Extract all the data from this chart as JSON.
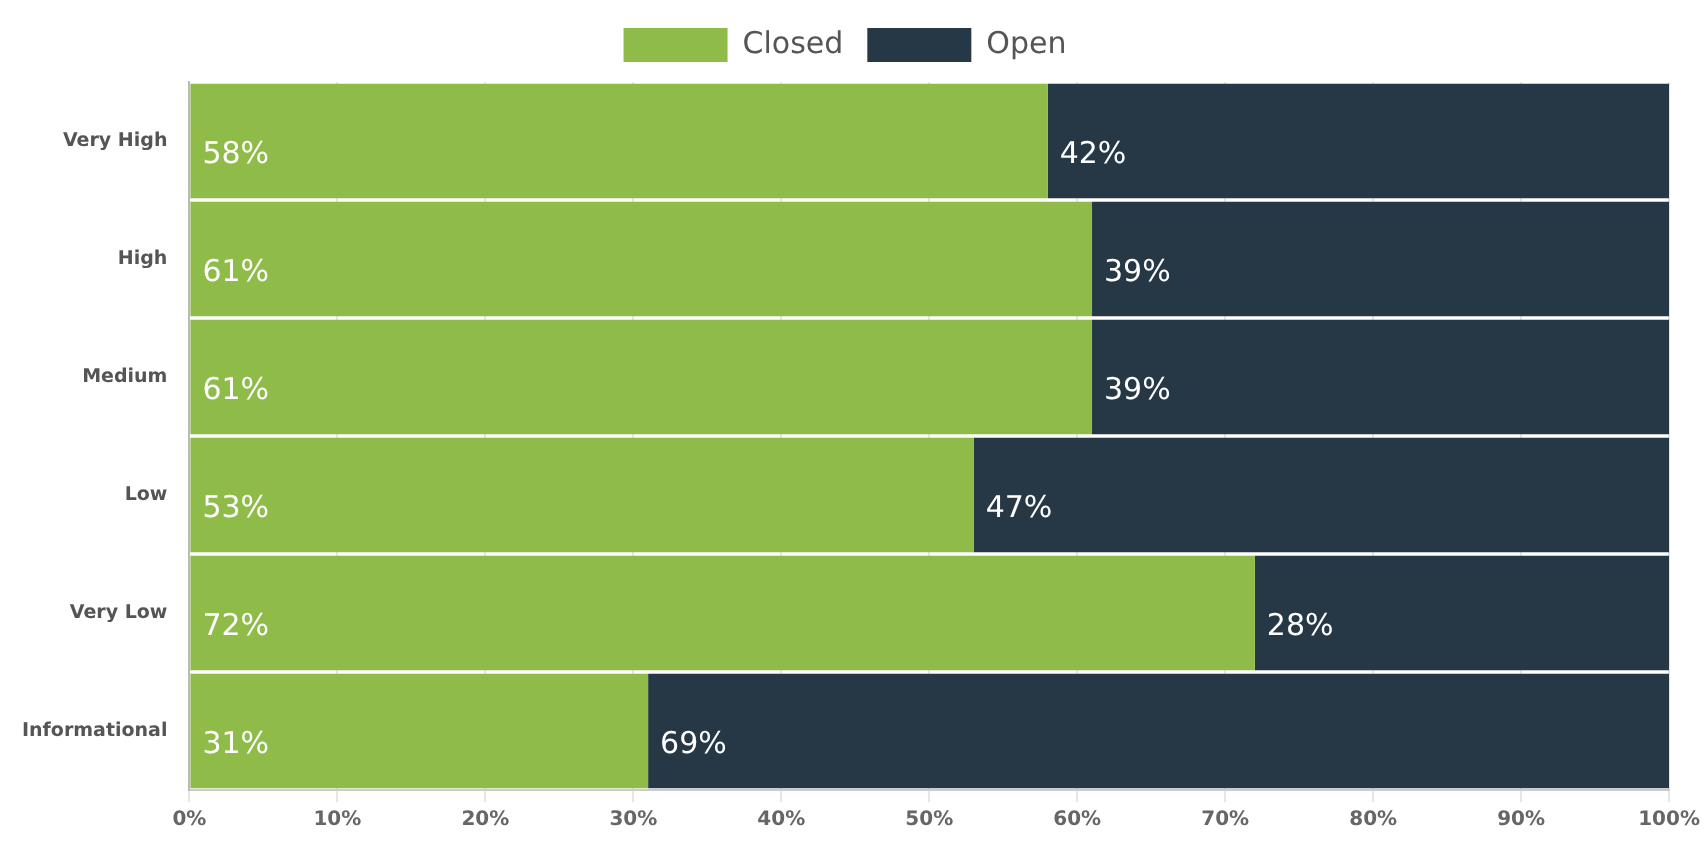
{
  "chart_data": {
    "type": "bar",
    "orientation": "horizontal",
    "stacked": true,
    "categories": [
      "Very High",
      "High",
      "Medium",
      "Low",
      "Very Low",
      "Informational"
    ],
    "series": [
      {
        "name": "Closed",
        "color": "#8fbb48",
        "values": [
          58,
          61,
          61,
          53,
          72,
          31
        ],
        "value_labels": [
          "58%",
          "61%",
          "61%",
          "53%",
          "72%",
          "31%"
        ]
      },
      {
        "name": "Open",
        "color": "#263746",
        "values": [
          42,
          39,
          39,
          47,
          28,
          69
        ],
        "value_labels": [
          "42%",
          "39%",
          "39%",
          "47%",
          "28%",
          "69%"
        ]
      }
    ],
    "xlim": [
      0,
      100
    ],
    "xticks": [
      {
        "value": 0,
        "label": "0%"
      },
      {
        "value": 10,
        "label": "10%"
      },
      {
        "value": 20,
        "label": "20%"
      },
      {
        "value": 30,
        "label": "30%"
      },
      {
        "value": 40,
        "label": "40%"
      },
      {
        "value": 50,
        "label": "50%"
      },
      {
        "value": 60,
        "label": "60%"
      },
      {
        "value": 70,
        "label": "70%"
      },
      {
        "value": 80,
        "label": "80%"
      },
      {
        "value": 90,
        "label": "90%"
      },
      {
        "value": 100,
        "label": "100%"
      }
    ],
    "grid": "x",
    "legend": "top"
  }
}
